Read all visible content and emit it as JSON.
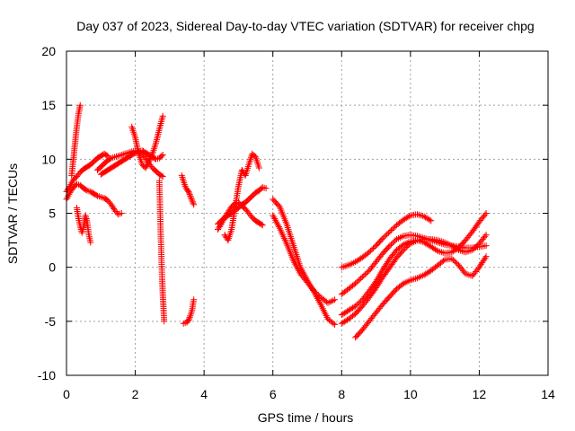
{
  "chart_data": {
    "type": "scatter",
    "title": "Day 037 of 2023, Sidereal Day-to-day VTEC variation (SDTVAR) for receiver chpg",
    "xlabel": "GPS time / hours",
    "ylabel": "SDTVAR / TECUs",
    "xlim": [
      0,
      14
    ],
    "ylim": [
      -10,
      20
    ],
    "x_ticks": [
      0,
      2,
      4,
      6,
      8,
      10,
      12,
      14
    ],
    "y_ticks": [
      -10,
      -5,
      0,
      5,
      10,
      15,
      20
    ],
    "grid": true,
    "legend": "none",
    "marker": "plus",
    "color": "#ff0000",
    "series": [
      {
        "name": "trace-1",
        "x": [
          0.0,
          0.1,
          0.2,
          0.3,
          0.4,
          0.5,
          0.6,
          0.7,
          0.8,
          0.9,
          1.0,
          1.1,
          1.2,
          1.3,
          1.4,
          1.5,
          1.6
        ],
        "y": [
          6.3,
          6.9,
          7.4,
          7.7,
          7.6,
          7.3,
          7.1,
          7.0,
          6.8,
          6.6,
          6.5,
          6.4,
          6.2,
          5.8,
          5.3,
          4.9,
          5.0
        ]
      },
      {
        "name": "trace-2",
        "x": [
          0.0,
          0.1,
          0.2,
          0.3,
          0.4,
          0.5,
          0.6,
          0.7,
          0.8,
          0.9,
          1.0,
          1.1,
          1.2
        ],
        "y": [
          7.0,
          7.5,
          8.1,
          8.4,
          8.8,
          9.1,
          9.3,
          9.5,
          9.8,
          10.1,
          10.3,
          10.5,
          10.3
        ]
      },
      {
        "name": "trace-3",
        "x": [
          0.15,
          0.2,
          0.25,
          0.3,
          0.35,
          0.4
        ],
        "y": [
          8.5,
          10.0,
          11.5,
          13.0,
          14.2,
          15.0
        ]
      },
      {
        "name": "trace-4",
        "x": [
          0.3,
          0.35,
          0.4,
          0.45,
          0.5,
          0.55,
          0.6,
          0.65,
          0.7
        ],
        "y": [
          5.5,
          4.5,
          3.8,
          3.2,
          3.8,
          4.8,
          4.2,
          3.0,
          2.3
        ]
      },
      {
        "name": "trace-5",
        "x": [
          0.9,
          1.0,
          1.1,
          1.2,
          1.3,
          1.4,
          1.5,
          1.6,
          1.7,
          1.8,
          1.9,
          2.0,
          2.1,
          2.2,
          2.3,
          2.4,
          2.5,
          2.6,
          2.7,
          2.8
        ],
        "y": [
          9.0,
          9.3,
          9.6,
          9.9,
          10.1,
          10.2,
          10.3,
          10.4,
          10.5,
          10.6,
          10.7,
          10.8,
          10.7,
          10.5,
          10.1,
          9.6,
          9.2,
          8.9,
          8.6,
          8.4
        ]
      },
      {
        "name": "trace-6",
        "x": [
          1.0,
          1.1,
          1.2,
          1.3,
          1.4,
          1.5,
          1.6,
          1.7,
          1.8,
          1.9,
          2.0,
          2.1,
          2.2,
          2.3,
          2.4,
          2.5,
          2.6,
          2.7,
          2.8
        ],
        "y": [
          8.6,
          8.8,
          9.0,
          9.2,
          9.4,
          9.6,
          9.8,
          10.0,
          10.2,
          10.4,
          10.6,
          10.7,
          10.8,
          10.6,
          10.4,
          10.2,
          10.0,
          10.1,
          10.4
        ]
      },
      {
        "name": "trace-7",
        "x": [
          1.9,
          2.0,
          2.1,
          2.2,
          2.3,
          2.4,
          2.5,
          2.6,
          2.7,
          2.8
        ],
        "y": [
          13.0,
          12.0,
          10.5,
          9.5,
          9.2,
          9.8,
          10.5,
          11.5,
          12.8,
          14.0
        ]
      },
      {
        "name": "trace-8",
        "x": [
          2.7,
          2.72,
          2.74,
          2.76,
          2.78,
          2.8,
          2.82,
          2.84
        ],
        "y": [
          8.0,
          5.5,
          3.0,
          1.0,
          -1.0,
          -2.5,
          -3.8,
          -5.0
        ]
      },
      {
        "name": "trace-9",
        "x": [
          3.4,
          3.5,
          3.55,
          3.6,
          3.65,
          3.7
        ],
        "y": [
          -5.2,
          -5.1,
          -4.9,
          -4.5,
          -4.0,
          -3.0
        ]
      },
      {
        "name": "trace-10",
        "x": [
          3.35,
          3.4,
          3.45,
          3.5,
          3.55,
          3.6,
          3.65,
          3.7
        ],
        "y": [
          8.5,
          8.0,
          7.5,
          7.2,
          7.0,
          6.6,
          6.2,
          5.8
        ]
      },
      {
        "name": "trace-11",
        "x": [
          4.4,
          4.5,
          4.6,
          4.7,
          4.8,
          4.9,
          5.0,
          5.1,
          5.2,
          5.3,
          5.4,
          5.5,
          5.6,
          5.7,
          5.8
        ],
        "y": [
          4.0,
          4.3,
          4.6,
          4.8,
          5.0,
          5.3,
          5.5,
          5.8,
          6.0,
          6.3,
          6.6,
          6.9,
          7.1,
          7.4,
          7.3
        ]
      },
      {
        "name": "trace-12",
        "x": [
          4.4,
          4.5,
          4.6,
          4.7,
          4.8,
          4.9,
          5.0,
          5.1,
          5.2,
          5.3,
          5.4,
          5.5,
          5.6,
          5.7
        ],
        "y": [
          3.5,
          4.0,
          4.6,
          5.1,
          5.6,
          5.9,
          6.0,
          5.7,
          5.4,
          5.0,
          4.6,
          4.3,
          4.1,
          3.9
        ]
      },
      {
        "name": "trace-13",
        "x": [
          4.6,
          4.7,
          4.8,
          4.9,
          5.0,
          5.1,
          5.2
        ],
        "y": [
          3.0,
          2.5,
          3.5,
          5.5,
          7.5,
          9.0,
          8.5
        ]
      },
      {
        "name": "trace-14",
        "x": [
          5.2,
          5.3,
          5.4,
          5.5,
          5.6
        ],
        "y": [
          8.5,
          9.5,
          10.5,
          10.2,
          9.2
        ]
      },
      {
        "name": "trace-15",
        "x": [
          6.0,
          6.2,
          6.4,
          6.6,
          6.8,
          7.0,
          7.2,
          7.4,
          7.6,
          7.8
        ],
        "y": [
          6.3,
          5.6,
          4.0,
          2.0,
          0.0,
          -1.2,
          -2.3,
          -3.5,
          -4.8,
          -5.3
        ]
      },
      {
        "name": "trace-16",
        "x": [
          6.0,
          6.2,
          6.4,
          6.6,
          6.8,
          7.0,
          7.2,
          7.4,
          7.6,
          7.8
        ],
        "y": [
          4.8,
          3.6,
          2.2,
          0.6,
          -0.6,
          -1.4,
          -2.2,
          -2.8,
          -3.3,
          -3.0
        ]
      },
      {
        "name": "trace-17",
        "x": [
          8.0,
          8.2,
          8.4,
          8.6,
          8.8,
          9.0,
          9.2,
          9.4,
          9.6,
          9.8,
          10.0,
          10.2,
          10.4,
          10.6,
          10.8,
          11.0,
          11.2,
          11.4,
          11.6,
          11.8,
          12.0,
          12.2
        ],
        "y": [
          -2.5,
          -2.0,
          -1.5,
          -0.9,
          -0.3,
          0.5,
          1.3,
          2.0,
          2.6,
          2.9,
          3.0,
          2.9,
          2.7,
          2.5,
          2.3,
          2.1,
          2.0,
          1.9,
          1.8,
          1.8,
          1.9,
          2.0
        ]
      },
      {
        "name": "trace-18",
        "x": [
          8.0,
          8.2,
          8.4,
          8.6,
          8.8,
          9.0,
          9.2,
          9.4,
          9.6,
          9.8,
          10.0,
          10.2,
          10.4,
          10.6,
          10.8,
          11.0,
          11.2,
          11.4,
          11.6,
          11.8,
          12.0,
          12.2
        ],
        "y": [
          -5.2,
          -4.8,
          -4.3,
          -3.6,
          -2.8,
          -1.9,
          -0.9,
          0.0,
          0.9,
          1.6,
          2.2,
          2.5,
          2.6,
          2.6,
          2.5,
          2.3,
          2.0,
          1.6,
          1.4,
          1.6,
          2.2,
          3.0
        ]
      },
      {
        "name": "trace-19",
        "x": [
          8.0,
          8.2,
          8.4,
          8.6,
          8.8,
          9.0,
          9.2,
          9.4,
          9.6,
          9.8,
          10.0,
          10.2,
          10.4,
          10.6,
          10.8,
          11.0,
          11.2,
          11.4,
          11.6,
          11.8,
          12.0,
          12.2
        ],
        "y": [
          -4.4,
          -4.0,
          -3.6,
          -3.0,
          -2.2,
          -1.3,
          -0.2,
          0.8,
          1.6,
          2.1,
          2.4,
          2.5,
          2.3,
          1.9,
          1.5,
          1.3,
          1.4,
          1.8,
          2.5,
          3.3,
          4.2,
          5.0
        ]
      },
      {
        "name": "trace-20",
        "x": [
          8.0,
          8.2,
          8.4,
          8.6,
          8.8,
          9.0,
          9.2,
          9.4,
          9.6,
          9.8,
          10.0,
          10.2,
          10.4,
          10.6
        ],
        "y": [
          0.0,
          0.2,
          0.5,
          0.9,
          1.4,
          2.0,
          2.7,
          3.3,
          3.9,
          4.4,
          4.8,
          4.9,
          4.7,
          4.3
        ]
      },
      {
        "name": "trace-21",
        "x": [
          8.4,
          8.6,
          8.8,
          9.0,
          9.2,
          9.4,
          9.6,
          9.8,
          10.0,
          10.2,
          10.4,
          10.6,
          10.8,
          11.0,
          11.2,
          11.4,
          11.6,
          11.8,
          12.0,
          12.2
        ],
        "y": [
          -6.5,
          -5.8,
          -5.0,
          -4.2,
          -3.4,
          -2.7,
          -2.0,
          -1.5,
          -1.2,
          -1.0,
          -0.7,
          -0.3,
          0.2,
          0.7,
          0.8,
          0.2,
          -0.6,
          -0.8,
          0.0,
          1.0
        ]
      }
    ]
  }
}
